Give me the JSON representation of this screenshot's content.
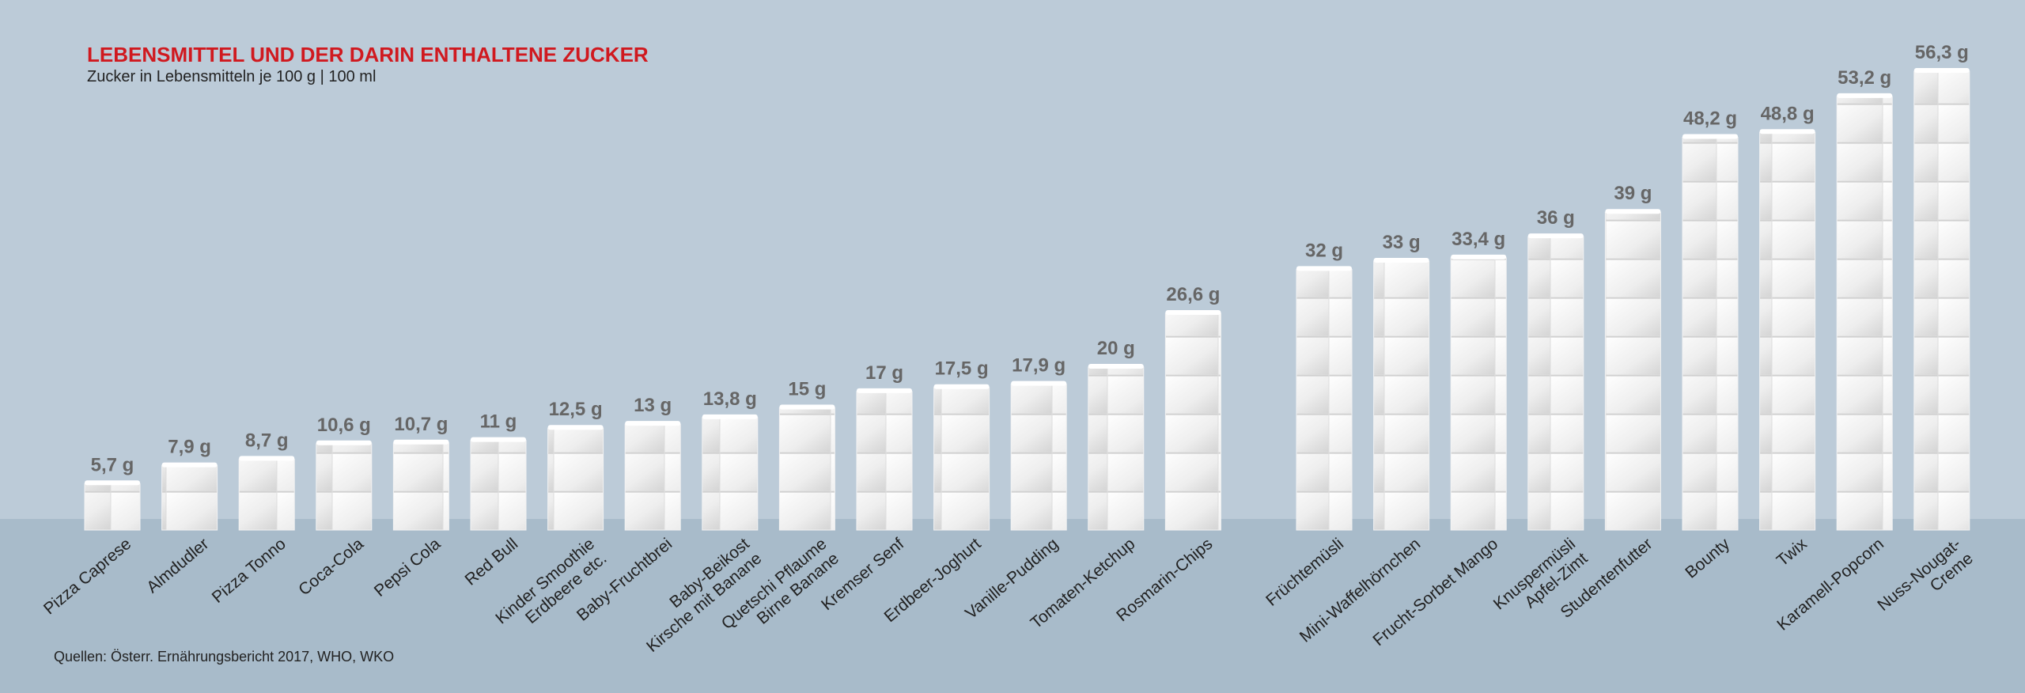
{
  "chart_data": {
    "type": "bar",
    "title": "LEBENSMITTEL UND DER DARIN ENTHALTENE ZUCKER",
    "subtitle": "Zucker in Lebensmitteln je 100 g | 100 ml",
    "source": "Quellen: Österr. Ernährungsbericht 2017, WHO, WKO",
    "categories": [
      "Pizza Caprese",
      "Almdudler",
      "Pizza Tonno",
      "Coca-Cola",
      "Pepsi Cola",
      "Red Bull",
      "Kinder Smoothie\nErdbeere etc.",
      "Baby-Fruchtbrei",
      "Baby-Beikost\nKirsche mit Banane",
      "Quetschi Pflaume\nBirne Banane",
      "Kremser Senf",
      "Erdbeer-Joghurt",
      "Vanille-Pudding",
      "Tomaten-Ketchup",
      "Rosmarin-Chips",
      "Früchtemüsli",
      "Mini-Waffelhörnchen",
      "Frucht-Sorbet Mango",
      "Knuspermüsli\nApfel-Zimt",
      "Studentenfutter",
      "Bounty",
      "Twix",
      "Karamell-Popcorn",
      "Nuss-Nougat-\nCreme"
    ],
    "values": [
      5.7,
      7.9,
      8.7,
      10.6,
      10.7,
      11,
      12.5,
      13,
      13.8,
      15,
      17,
      17.5,
      17.9,
      20,
      26.6,
      32,
      33,
      33.4,
      36,
      39,
      48.2,
      48.8,
      53.2,
      56.3
    ],
    "value_labels": [
      "5,7 g",
      "7,9 g",
      "8,7 g",
      "10,6 g",
      "10,7 g",
      "11 g",
      "12,5 g",
      "13 g",
      "13,8 g",
      "15 g",
      "17 g",
      "17,5 g",
      "17,9 g",
      "20 g",
      "26,6 g",
      "32 g",
      "33 g",
      "33,4 g",
      "36 g",
      "39 g",
      "48,2 g",
      "48,8 g",
      "53,2 g",
      "56,3 g"
    ],
    "color": "#f2f2f2"
  }
}
